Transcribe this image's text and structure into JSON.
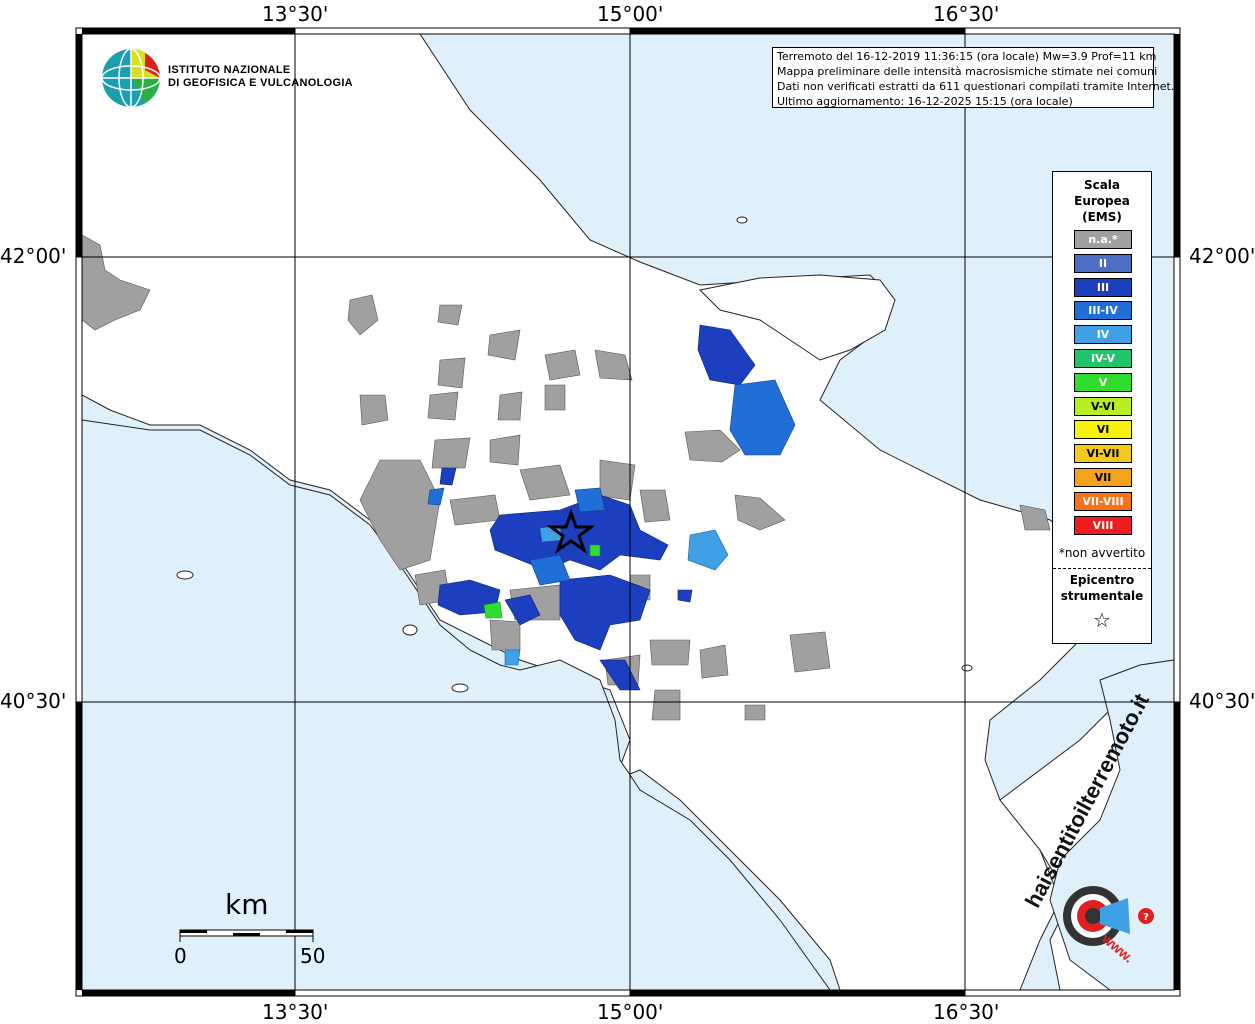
{
  "map": {
    "lon_ticks": [
      "13°30'",
      "15°00'",
      "16°30'"
    ],
    "lat_ticks": [
      "42°00'",
      "40°30'"
    ],
    "colors": {
      "sea": "#dff0fb",
      "land": "#ffffff",
      "na": "#a0a0a0",
      "III": "#1b3fbf",
      "III_IV": "#1f6fd6",
      "IV": "#3fa0e6",
      "V": "#2fdc2f"
    }
  },
  "info": {
    "line1": "Terremoto del 16-12-2019 11:36:15 (ora locale) Mw=3.9 Prof=11 km",
    "line2": "Mappa preliminare delle intensità macrosismiche stimate nei comuni",
    "line3": "Dati non verificati estratti da 611 questionari compilati tramite Internet.",
    "line4": "Ultimo aggiornamento: 16-12-2025 15:15 (ora locale)"
  },
  "logo": {
    "line1": "ISTITUTO NAZIONALE",
    "line2": "DI GEOFISICA E VULCANOLOGIA"
  },
  "legend": {
    "title1": "Scala",
    "title2": "Europea",
    "title3": "(EMS)",
    "items": [
      {
        "label": "n.a.*",
        "color": "#a0a0a0"
      },
      {
        "label": "II",
        "color": "#4a6fc4"
      },
      {
        "label": "III",
        "color": "#1b3fbf"
      },
      {
        "label": "III-IV",
        "color": "#1f6fd6"
      },
      {
        "label": "IV",
        "color": "#3fa0e6"
      },
      {
        "label": "IV-V",
        "color": "#22c46a"
      },
      {
        "label": "V",
        "color": "#2fdc2f"
      },
      {
        "label": "V-VI",
        "color": "#b8ef20"
      },
      {
        "label": "VI",
        "color": "#f7f20a"
      },
      {
        "label": "VI-VII",
        "color": "#f7c81c"
      },
      {
        "label": "VII",
        "color": "#f7a21c"
      },
      {
        "label": "VII-VIII",
        "color": "#f5741b"
      },
      {
        "label": "VIII",
        "color": "#ee1c1c"
      }
    ],
    "note": "*non avvertito",
    "epi1": "Epicentro",
    "epi2": "strumentale",
    "star": "☆"
  },
  "scale": {
    "unit": "km",
    "min": "0",
    "max": "50"
  },
  "hsi": {
    "text": "haisentitoilterremoto.it",
    "www": "www."
  }
}
